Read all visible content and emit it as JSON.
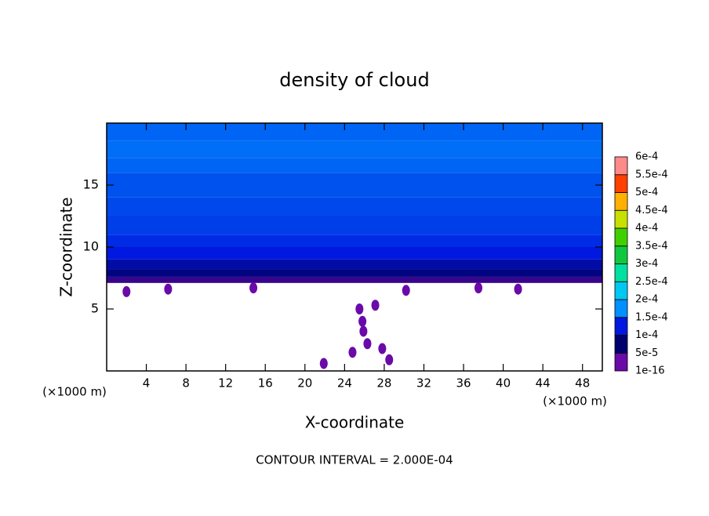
{
  "chart_data": {
    "type": "contour",
    "title": "density of cloud",
    "xlabel": "X-coordinate",
    "ylabel": "Z-coordinate",
    "x_unit": "(×1000 m)",
    "y_unit": "(×1000 m)",
    "footer": "CONTOUR INTERVAL = 2.000E-04",
    "xlim": [
      0,
      50
    ],
    "xticks": [
      4,
      8,
      12,
      16,
      20,
      24,
      28,
      32,
      36,
      40,
      44,
      48
    ],
    "ylim": [
      0,
      20
    ],
    "yticks": [
      5,
      10,
      15
    ],
    "levels": [
      {
        "value": 1e-16,
        "label": "1e-16"
      },
      {
        "value": 5e-05,
        "label": "5e-5"
      },
      {
        "value": 0.0001,
        "label": "1e-4"
      },
      {
        "value": 0.00015,
        "label": "1.5e-4"
      },
      {
        "value": 0.0002,
        "label": "2e-4"
      },
      {
        "value": 0.00025,
        "label": "2.5e-4"
      },
      {
        "value": 0.0003,
        "label": "3e-4"
      },
      {
        "value": 0.00035,
        "label": "3.5e-4"
      },
      {
        "value": 0.0004,
        "label": "4e-4"
      },
      {
        "value": 0.00045,
        "label": "4.5e-4"
      },
      {
        "value": 0.0005,
        "label": "5e-4"
      },
      {
        "value": 0.00055,
        "label": "5.5e-4"
      },
      {
        "value": 0.0006,
        "label": "6e-4"
      }
    ],
    "colors": [
      "#6a0aa8",
      "#00006e",
      "#0018e0",
      "#0090ff",
      "#00c8f0",
      "#00e0a0",
      "#10c840",
      "#40d000",
      "#c8e000",
      "#ffb000",
      "#ff4000",
      "#ff8a8a"
    ],
    "profile": {
      "z": [
        7.1,
        7.6,
        8.2,
        9,
        10,
        11,
        12.5,
        14,
        16,
        17.2,
        18.6
      ],
      "values": [
        3e-05,
        6e-05,
        8e-05,
        0.0001,
        0.00011,
        0.00012,
        0.000125,
        0.00013,
        0.00014,
        0.000145,
        0.00014
      ]
    },
    "patches": {
      "x": [
        25.8,
        25.9,
        26.3,
        27.8,
        24.8,
        28.5,
        21.9,
        25.5,
        27.1,
        2.0,
        6.2,
        14.8,
        30.2,
        37.5,
        41.5
      ],
      "z": [
        4.0,
        3.2,
        2.2,
        1.8,
        1.5,
        0.9,
        0.6,
        5.0,
        5.3,
        6.4,
        6.6,
        6.7,
        6.5,
        6.7,
        6.6
      ]
    }
  }
}
